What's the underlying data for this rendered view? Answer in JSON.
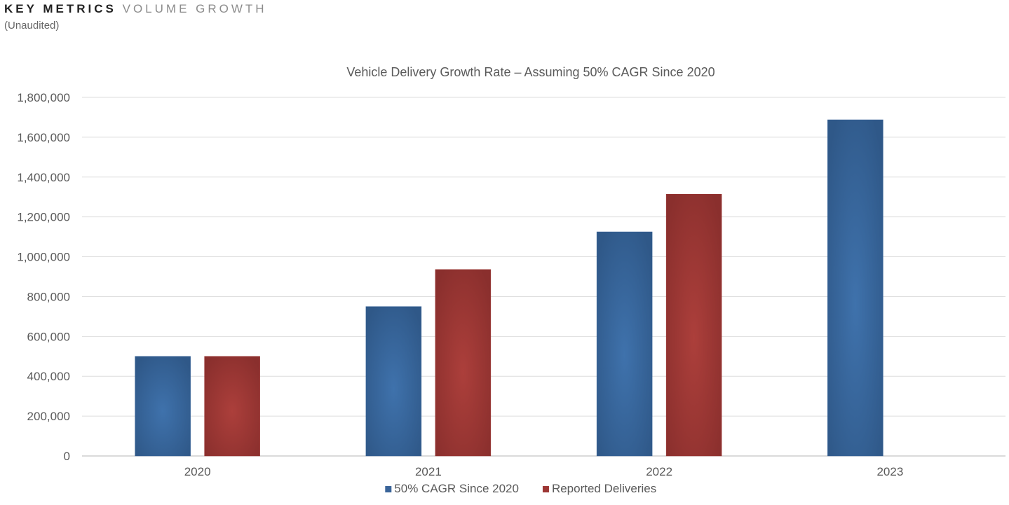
{
  "header": {
    "title_strong": "KEY METRICS",
    "title_light": "VOLUME GROWTH",
    "subtitle": "(Unaudited)"
  },
  "chart_data": {
    "type": "bar",
    "title": "Vehicle Delivery Growth Rate – Assuming 50% CAGR Since 2020",
    "xlabel": "",
    "ylabel": "",
    "categories": [
      "2020",
      "2021",
      "2022",
      "2023"
    ],
    "series": [
      {
        "name": "50% CAGR Since 2020",
        "values": [
          500000,
          750000,
          1125000,
          1687500
        ]
      },
      {
        "name": "Reported Deliveries",
        "values": [
          500000,
          936000,
          1314000,
          null
        ]
      }
    ],
    "ylim": [
      0,
      1800000
    ],
    "yticks": [
      0,
      200000,
      400000,
      600000,
      800000,
      1000000,
      1200000,
      1400000,
      1600000,
      1800000
    ],
    "ytick_labels": [
      "0",
      "200,000",
      "400,000",
      "600,000",
      "800,000",
      "1,000,000",
      "1,200,000",
      "1,400,000",
      "1,600,000",
      "1,800,000"
    ],
    "grid": true,
    "legend_position": "bottom-center",
    "colors": {
      "series_0": "#3a6499",
      "series_1": "#9d3634",
      "gridline": "#dedede",
      "axis": "#b5b5b5"
    }
  }
}
